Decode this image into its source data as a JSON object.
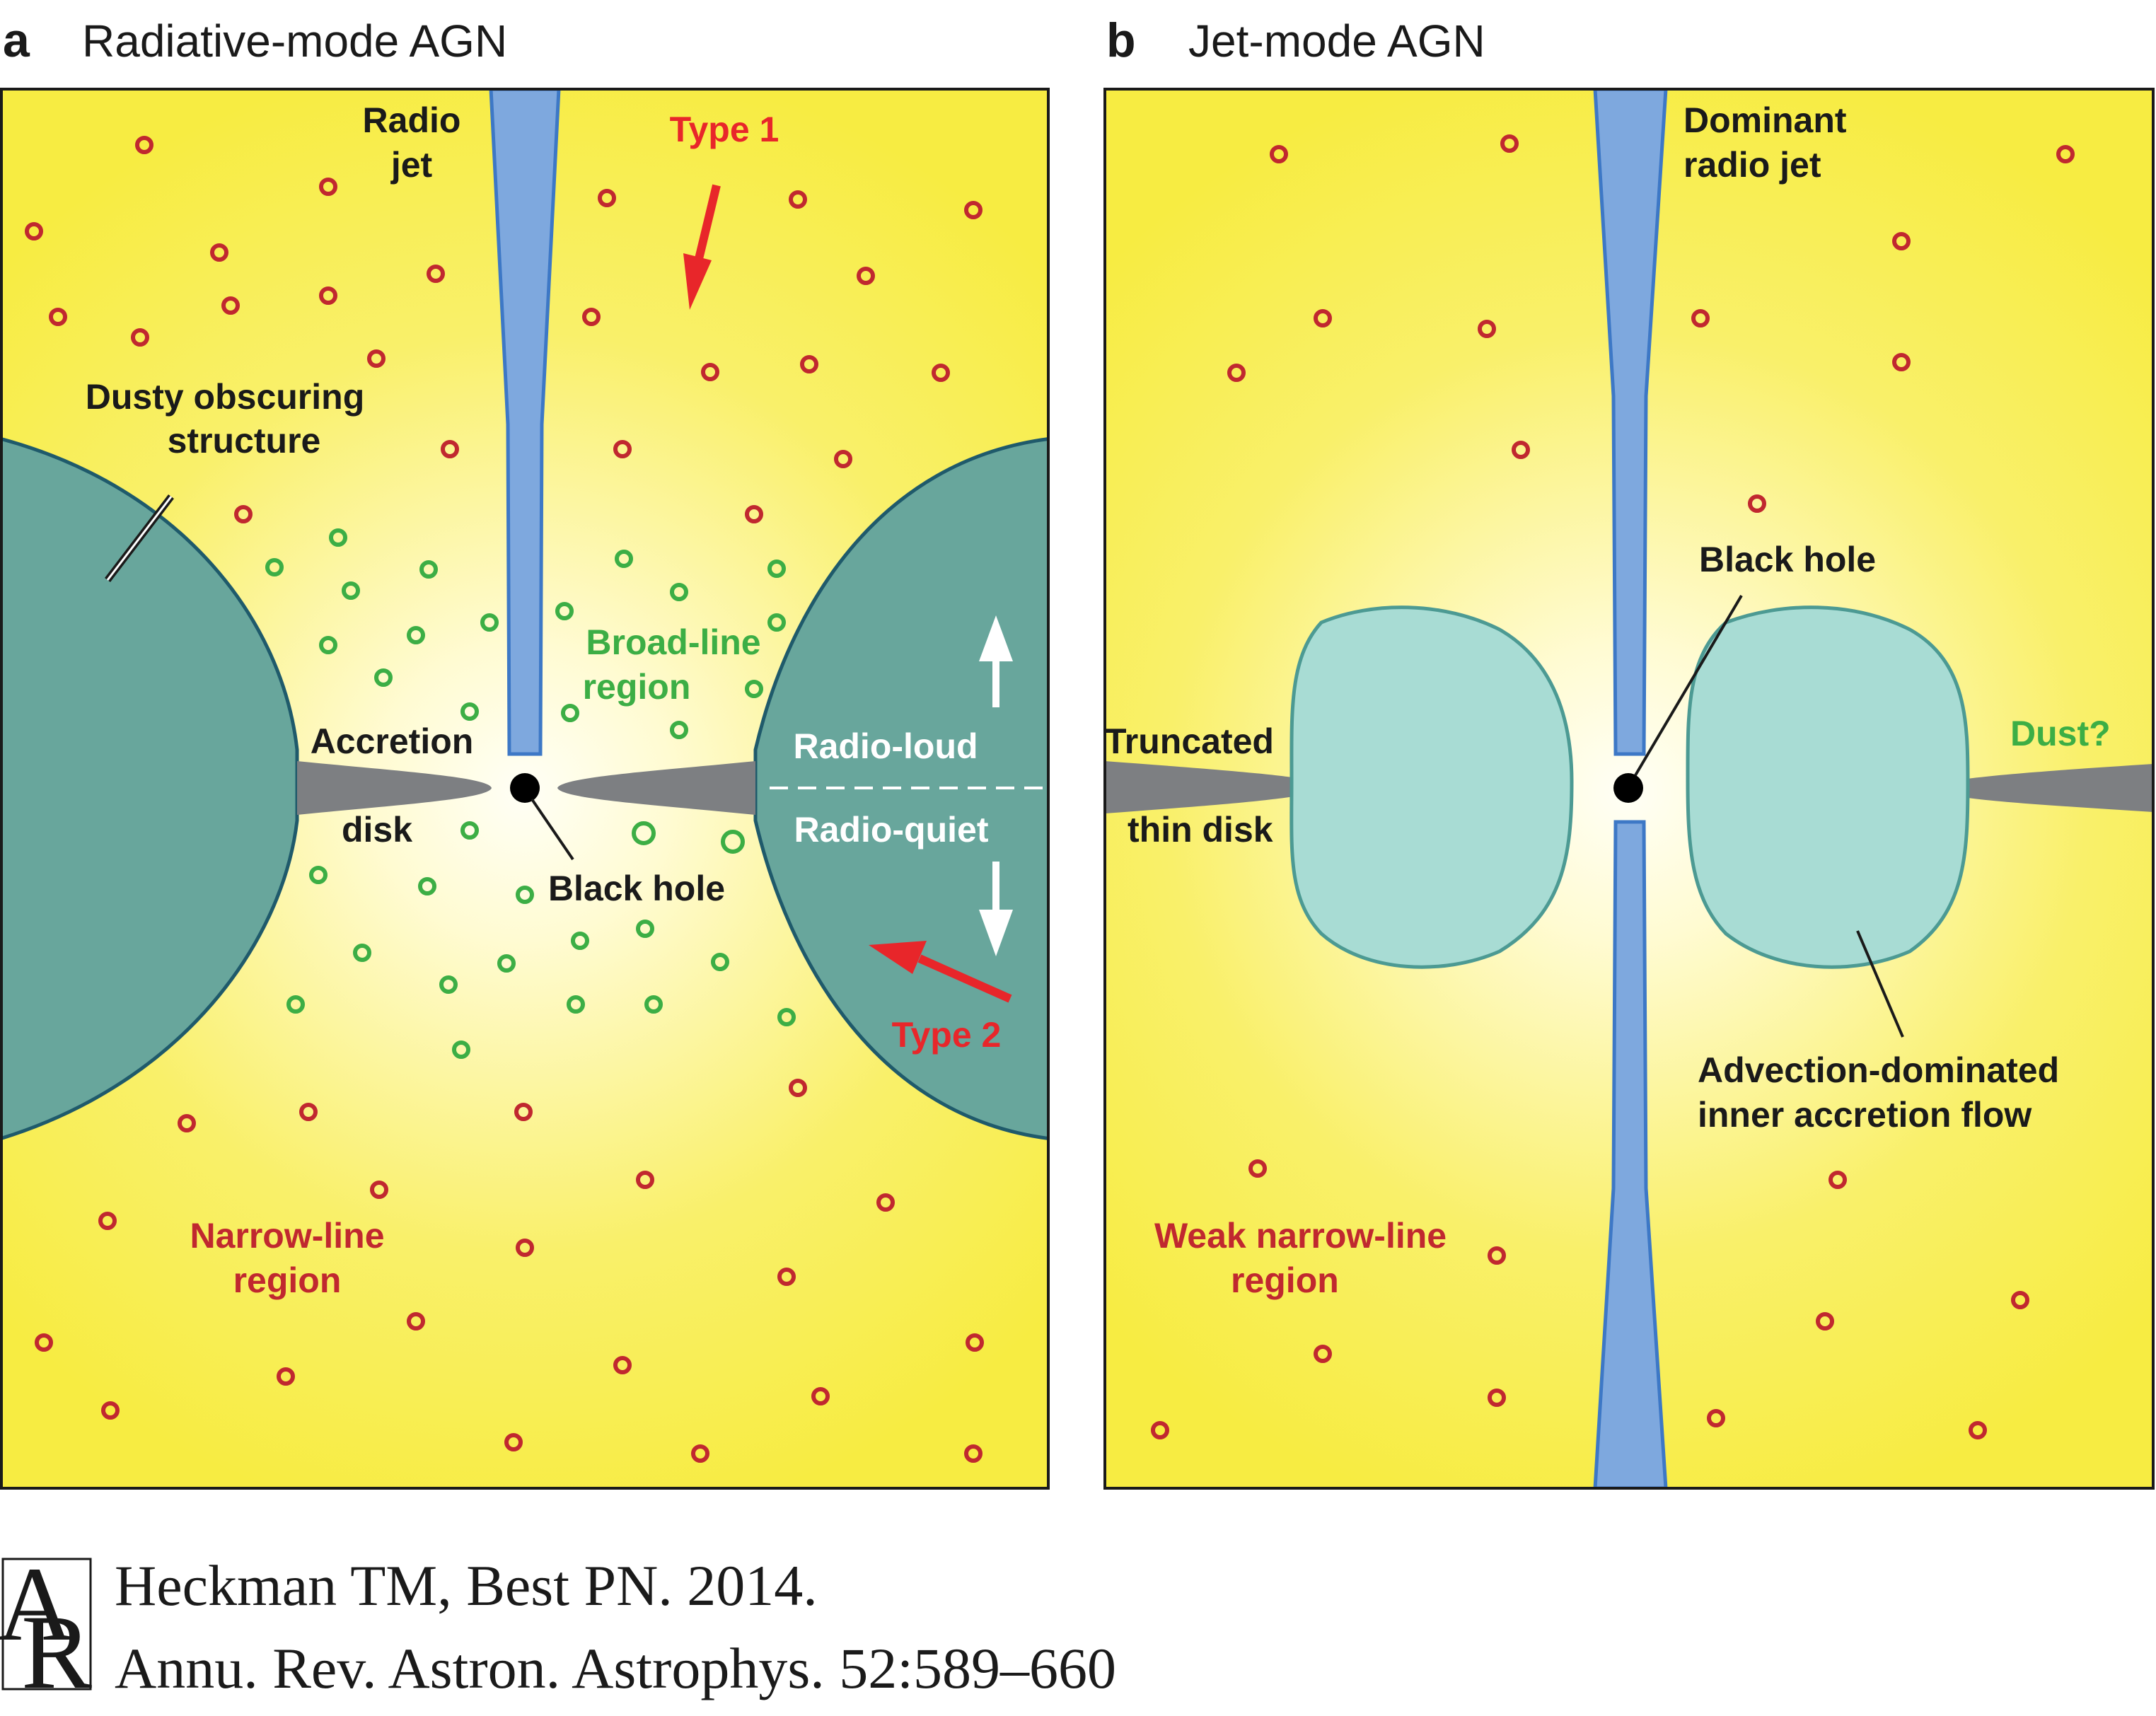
{
  "colors": {
    "yellow": "#f7ee4a",
    "glow": "#fffff4",
    "jet": "#7ea8de",
    "jet_edge": "#3d78c6",
    "dust": "#68a69c",
    "dust_edge": "#1f5a6b",
    "adaf": "#a8dcd4",
    "adaf_edge": "#4c9a93",
    "disk": "#7d7f82",
    "nlr": "#c0282f",
    "blr": "#3cae45",
    "arrow_red": "#e8262a",
    "white": "#ffffff",
    "text_dark": "#1a1a1a"
  },
  "panel_a": {
    "letter": "a",
    "title": "Radiative-mode AGN",
    "labels": {
      "radio_jet_1": "Radio",
      "radio_jet_2": "jet",
      "type1": "Type 1",
      "dusty_1": "Dusty obscuring",
      "dusty_2": "structure",
      "blr_1": "Broad-line",
      "blr_2": "region",
      "accretion": "Accretion",
      "disk": "disk",
      "radio_loud": "Radio-loud",
      "radio_quiet": "Radio-quiet",
      "black_hole": "Black hole",
      "type2": "Type 2",
      "nlr_1": "Narrow-line",
      "nlr_2": "region"
    }
  },
  "panel_b": {
    "letter": "b",
    "title": "Jet-mode AGN",
    "labels": {
      "jet_1": "Dominant",
      "jet_2": "radio jet",
      "black_hole": "Black hole",
      "truncated_1": "Truncated",
      "truncated_2": "thin disk",
      "dust": "Dust?",
      "adaf_1": "Advection-dominated",
      "adaf_2": "inner accretion flow",
      "nlr_1": "Weak narrow-line",
      "nlr_2": "region"
    }
  },
  "citation": {
    "logo_a": "A",
    "logo_r": "R",
    "line1": "Heckman TM, Best PN. 2014.",
    "line2": "Annu. Rev. Astron. Astrophys. 52:589–660"
  }
}
